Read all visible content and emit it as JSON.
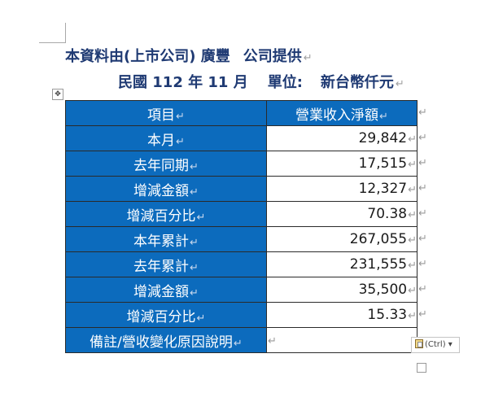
{
  "header": {
    "line1": {
      "source": "本資料由(上市公司)  廣豐",
      "provided": "公司提供",
      "para_mark": "↵"
    },
    "line2": {
      "period": "民國 112 年 11 月",
      "unit_label": "單位:",
      "unit_value": "新台幣仟元",
      "para_mark": "↵"
    }
  },
  "table": {
    "header": {
      "label": "項目",
      "value": "營業收入淨額"
    },
    "rows": [
      {
        "label": "本月",
        "value": "29,842"
      },
      {
        "label": "去年同期",
        "value": "17,515"
      },
      {
        "label": "增減金額",
        "value": "12,327"
      },
      {
        "label": "增減百分比",
        "value": "70.38"
      },
      {
        "label": "本年累計",
        "value": "267,055"
      },
      {
        "label": "去年累計",
        "value": "231,555"
      },
      {
        "label": "增減金額",
        "value": "35,500"
      },
      {
        "label": "增減百分比",
        "value": "15.33"
      }
    ],
    "note_row": {
      "label": "備註/營收變化原因說明",
      "value": ""
    },
    "cell_mark": "↵",
    "row_end_mark": "↵"
  },
  "ui": {
    "move_handle_glyph": "✥",
    "paste_options_label": "(Ctrl)",
    "paste_dropdown_glyph": "▾"
  }
}
